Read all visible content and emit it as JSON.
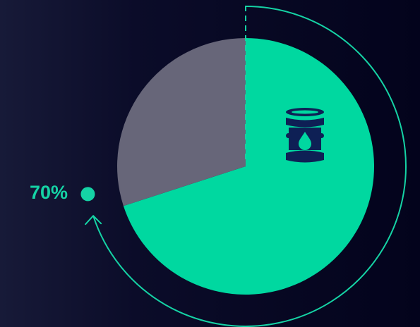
{
  "chart_data": {
    "type": "pie",
    "slices": [
      {
        "value": 70,
        "color": "#00d8a0"
      },
      {
        "value": 30,
        "color": "#676679"
      }
    ],
    "value_label": "70%",
    "accent_color": "#15d3a5",
    "icon": "oil-barrel-icon",
    "icon_color": "#0e2055"
  }
}
